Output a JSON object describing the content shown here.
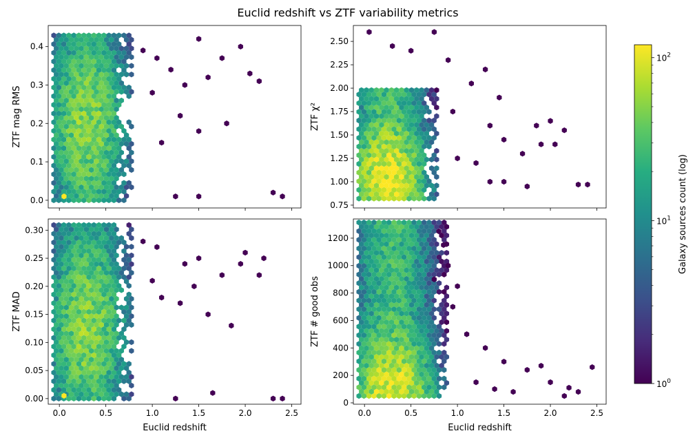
{
  "figure": {
    "title": "Euclid redshift vs ZTF variability metrics",
    "colorbar": {
      "label": "Galaxy sources count (log)",
      "scale": "log",
      "range": [
        1,
        120
      ],
      "colormap": "viridis",
      "major_ticks": [
        {
          "value": 1,
          "base": "10",
          "exp": "0"
        },
        {
          "value": 10,
          "base": "10",
          "exp": "1"
        },
        {
          "value": 100,
          "base": "10",
          "exp": "2"
        }
      ]
    }
  },
  "chart_data": [
    {
      "type": "heatmap",
      "subtype": "hexbin",
      "panel": "top-left",
      "xlabel": "",
      "ylabel": "ZTF mag RMS",
      "xlim": [
        -0.12,
        2.6
      ],
      "ylim": [
        -0.02,
        0.455
      ],
      "xticks": [
        0.0,
        0.5,
        1.0,
        1.5,
        2.0,
        2.5
      ],
      "xticklabels": [
        "",
        "",
        "",
        "",
        "",
        ""
      ],
      "yticks": [
        0.0,
        0.1,
        0.2,
        0.3,
        0.4
      ],
      "yticklabels": [
        "0.0",
        "0.1",
        "0.2",
        "0.3",
        "0.4"
      ],
      "density": {
        "x_mode": 0.3,
        "x_spread": 0.23,
        "x_cut": 0.78,
        "y_mode": 0.2,
        "y_spread": 0.12,
        "y_low": 0.0,
        "y_high": 0.44,
        "peak": 60
      },
      "hot_spots": [
        {
          "x": 0.05,
          "y": 0.01,
          "count": 120
        }
      ],
      "outliers": [
        [
          0.9,
          0.39
        ],
        [
          1.05,
          0.37
        ],
        [
          1.2,
          0.34
        ],
        [
          1.35,
          0.3
        ],
        [
          1.5,
          0.42
        ],
        [
          1.6,
          0.32
        ],
        [
          1.75,
          0.37
        ],
        [
          1.95,
          0.4
        ],
        [
          2.05,
          0.33
        ],
        [
          2.15,
          0.31
        ],
        [
          1.5,
          0.18
        ],
        [
          1.8,
          0.2
        ],
        [
          1.25,
          0.01
        ],
        [
          1.5,
          0.01
        ],
        [
          2.3,
          0.02
        ],
        [
          2.4,
          0.01
        ],
        [
          1.1,
          0.15
        ],
        [
          1.3,
          0.22
        ],
        [
          1.0,
          0.28
        ]
      ]
    },
    {
      "type": "heatmap",
      "subtype": "hexbin",
      "panel": "top-right",
      "xlabel": "",
      "ylabel": "ZTF χ²",
      "xlim": [
        -0.12,
        2.6
      ],
      "ylim": [
        0.72,
        2.67
      ],
      "xticks": [
        0.0,
        0.5,
        1.0,
        1.5,
        2.0,
        2.5
      ],
      "xticklabels": [
        "",
        "",
        "",
        "",
        "",
        ""
      ],
      "yticks": [
        0.75,
        1.0,
        1.25,
        1.5,
        1.75,
        2.0,
        2.25,
        2.5
      ],
      "yticklabels": [
        "0.75",
        "1.00",
        "1.25",
        "1.50",
        "1.75",
        "2.00",
        "2.25",
        "2.50"
      ],
      "density": {
        "x_mode": 0.25,
        "x_spread": 0.22,
        "x_cut": 0.8,
        "y_mode": 1.02,
        "y_spread": 0.32,
        "y_low": 0.82,
        "y_high": 2.0,
        "peak": 120
      },
      "hot_spots": [],
      "outliers": [
        [
          0.05,
          2.6
        ],
        [
          0.3,
          2.45
        ],
        [
          0.5,
          2.4
        ],
        [
          0.75,
          2.6
        ],
        [
          0.9,
          2.3
        ],
        [
          1.3,
          2.2
        ],
        [
          1.45,
          1.9
        ],
        [
          1.35,
          1.6
        ],
        [
          1.5,
          1.45
        ],
        [
          1.85,
          1.6
        ],
        [
          2.0,
          1.65
        ],
        [
          2.15,
          1.55
        ],
        [
          1.9,
          1.4
        ],
        [
          2.05,
          1.4
        ],
        [
          1.7,
          1.3
        ],
        [
          1.75,
          0.95
        ],
        [
          2.3,
          0.97
        ],
        [
          2.4,
          0.97
        ],
        [
          1.2,
          1.2
        ],
        [
          1.0,
          1.25
        ],
        [
          0.95,
          1.75
        ],
        [
          1.15,
          2.05
        ],
        [
          1.35,
          1.0
        ],
        [
          1.5,
          1.0
        ]
      ]
    },
    {
      "type": "heatmap",
      "subtype": "hexbin",
      "panel": "bottom-left",
      "xlabel": "Euclid redshift",
      "ylabel": "ZTF MAD",
      "xlim": [
        -0.12,
        2.6
      ],
      "ylim": [
        -0.01,
        0.32
      ],
      "xticks": [
        0.0,
        0.5,
        1.0,
        1.5,
        2.0,
        2.5
      ],
      "xticklabels": [
        "0.0",
        "0.5",
        "1.0",
        "1.5",
        "2.0",
        "2.5"
      ],
      "yticks": [
        0.0,
        0.05,
        0.1,
        0.15,
        0.2,
        0.25,
        0.3
      ],
      "yticklabels": [
        "0.00",
        "0.05",
        "0.10",
        "0.15",
        "0.20",
        "0.25",
        "0.30"
      ],
      "density": {
        "x_mode": 0.3,
        "x_spread": 0.23,
        "x_cut": 0.78,
        "y_mode": 0.13,
        "y_spread": 0.085,
        "y_low": 0.0,
        "y_high": 0.31,
        "peak": 60
      },
      "hot_spots": [
        {
          "x": 0.05,
          "y": 0.005,
          "count": 120
        }
      ],
      "outliers": [
        [
          0.9,
          0.28
        ],
        [
          1.05,
          0.27
        ],
        [
          1.35,
          0.24
        ],
        [
          1.5,
          0.25
        ],
        [
          1.75,
          0.22
        ],
        [
          1.95,
          0.24
        ],
        [
          2.0,
          0.26
        ],
        [
          2.2,
          0.25
        ],
        [
          2.15,
          0.22
        ],
        [
          1.85,
          0.13
        ],
        [
          1.6,
          0.15
        ],
        [
          1.45,
          0.2
        ],
        [
          1.3,
          0.17
        ],
        [
          1.25,
          0.0
        ],
        [
          1.65,
          0.01
        ],
        [
          2.3,
          0.0
        ],
        [
          2.4,
          0.0
        ],
        [
          1.1,
          0.18
        ],
        [
          1.0,
          0.21
        ]
      ]
    },
    {
      "type": "heatmap",
      "subtype": "hexbin",
      "panel": "bottom-right",
      "xlabel": "Euclid redshift",
      "ylabel": "ZTF # good obs",
      "xlim": [
        -0.12,
        2.6
      ],
      "ylim": [
        -10,
        1340
      ],
      "xticks": [
        0.0,
        0.5,
        1.0,
        1.5,
        2.0,
        2.5
      ],
      "xticklabels": [
        "0.0",
        "0.5",
        "1.0",
        "1.5",
        "2.0",
        "2.5"
      ],
      "yticks": [
        0,
        200,
        400,
        600,
        800,
        1000,
        1200
      ],
      "yticklabels": [
        "0",
        "200",
        "400",
        "600",
        "800",
        "1000",
        "1200"
      ],
      "density": {
        "x_mode": 0.3,
        "x_spread": 0.23,
        "x_cut": 0.9,
        "y_mode": 60,
        "y_spread": 220,
        "y_low": 50,
        "y_high": 1320,
        "peak": 120
      },
      "hot_spots": [],
      "outliers": [
        [
          0.8,
          1250
        ],
        [
          0.9,
          1000
        ],
        [
          1.0,
          850
        ],
        [
          1.1,
          500
        ],
        [
          1.3,
          400
        ],
        [
          1.5,
          300
        ],
        [
          1.75,
          240
        ],
        [
          1.9,
          270
        ],
        [
          2.0,
          150
        ],
        [
          2.2,
          110
        ],
        [
          2.3,
          80
        ],
        [
          2.45,
          260
        ],
        [
          1.2,
          150
        ],
        [
          1.4,
          100
        ],
        [
          1.6,
          80
        ],
        [
          2.15,
          50
        ],
        [
          0.95,
          700
        ],
        [
          0.85,
          1150
        ],
        [
          0.75,
          900
        ]
      ]
    }
  ]
}
